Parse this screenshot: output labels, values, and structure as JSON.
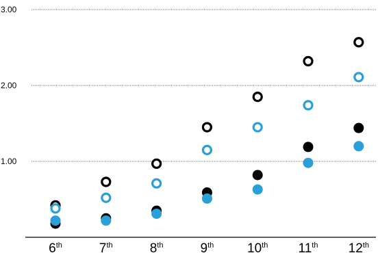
{
  "chart_data": {
    "type": "scatter",
    "title": "",
    "xlabel": "",
    "ylabel": "",
    "categories": [
      {
        "num": "6",
        "sup": "th"
      },
      {
        "num": "7",
        "sup": "th"
      },
      {
        "num": "8",
        "sup": "th"
      },
      {
        "num": "9",
        "sup": "th"
      },
      {
        "num": "10",
        "sup": "th"
      },
      {
        "num": "11",
        "sup": "th"
      },
      {
        "num": "12",
        "sup": "th"
      }
    ],
    "yticks": [
      "1.00",
      "2.00",
      "3.00"
    ],
    "ytick_values": [
      1.0,
      2.0,
      3.0
    ],
    "ylim": [
      0,
      3.0
    ],
    "grid": true,
    "legend": "none",
    "series": [
      {
        "marker": "open",
        "color": "#000000",
        "values": [
          0.42,
          0.73,
          0.97,
          1.45,
          1.85,
          2.32,
          2.57
        ]
      },
      {
        "marker": "open",
        "color": "#2a9fd8",
        "values": [
          0.38,
          0.52,
          0.71,
          1.15,
          1.45,
          1.74,
          2.11
        ]
      },
      {
        "marker": "filled",
        "color": "#000000",
        "values": [
          0.18,
          0.25,
          0.35,
          0.59,
          0.82,
          1.19,
          1.44
        ]
      },
      {
        "marker": "filled",
        "color": "#2a9fd8",
        "values": [
          0.22,
          0.22,
          0.31,
          0.51,
          0.63,
          0.98,
          1.2
        ]
      }
    ]
  }
}
